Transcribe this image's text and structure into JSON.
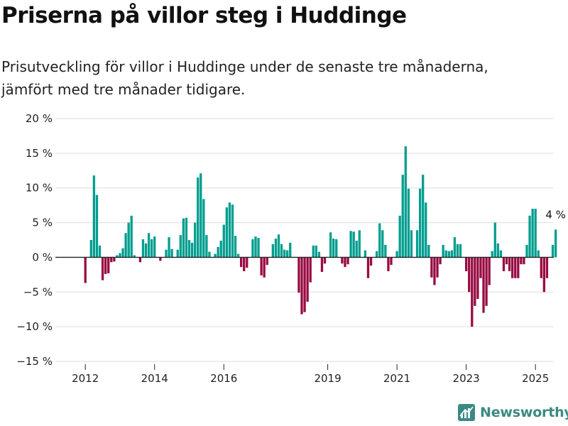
{
  "title": "Priserna på villor steg i Huddinge",
  "subtitle_lines": [
    "Prisutveckling för villor i Huddinge under de senaste tre månaderna,",
    "jämfört med tre månader tidigare."
  ],
  "brand": "Newsworthy",
  "colors": {
    "positive": "#009e8f",
    "negative": "#980a42",
    "grid": "#dddddd",
    "zero_line": "#222222",
    "brand": "#3a8a83"
  },
  "chart_data": {
    "type": "bar",
    "ylim": [
      -15,
      20
    ],
    "y_ticks": [
      -15,
      -10,
      -5,
      0,
      5,
      10,
      15,
      20
    ],
    "y_tick_labels": [
      "−15 %",
      "−10 %",
      "−5 %",
      "0 %",
      "5 %",
      "10 %",
      "15 %",
      "20 %"
    ],
    "x_ticks": [
      2012,
      2014,
      2016,
      2019,
      2021,
      2023,
      2025
    ],
    "x_tick_labels": [
      "2012",
      "2014",
      "2016",
      "2019",
      "2021",
      "2023",
      "2025"
    ],
    "x_start": 2012,
    "months_per_step": 1,
    "grid": true,
    "annotation": {
      "text": "4 %",
      "x": 2025
    },
    "values": [
      -3.7,
      null,
      2.5,
      11.8,
      9.0,
      1.7,
      -3.3,
      -2.4,
      -2.3,
      -0.7,
      -0.6,
      0.3,
      0.6,
      1.3,
      3.5,
      5.0,
      6.0,
      0.3,
      null,
      -0.7,
      2.6,
      2.0,
      3.5,
      2.6,
      3.0,
      null,
      -0.5,
      null,
      1.1,
      2.9,
      1.2,
      null,
      1.1,
      3.2,
      5.6,
      5.7,
      2.5,
      2.1,
      5.0,
      11.5,
      12.1,
      8.4,
      3.2,
      0.8,
      null,
      0.5,
      1.5,
      2.4,
      4.7,
      7.2,
      7.9,
      7.6,
      3.1,
      0.5,
      -1.4,
      -2.0,
      -1.5,
      null,
      2.6,
      3.0,
      2.8,
      -2.6,
      -2.9,
      -1.1,
      null,
      1.9,
      2.7,
      3.3,
      1.9,
      1.1,
      1.0,
      2.1,
      null,
      null,
      -5.1,
      -8.2,
      -7.9,
      -6.4,
      -3.6,
      1.7,
      1.7,
      0.8,
      -2.1,
      -0.9,
      null,
      3.6,
      2.7,
      2.6,
      null,
      -0.9,
      -1.4,
      -1.0,
      3.8,
      3.7,
      2.4,
      3.9,
      null,
      1.0,
      -3.0,
      -1.2,
      null,
      0.9,
      4.9,
      3.9,
      1.8,
      -2.0,
      -1.1,
      null,
      0.9,
      6.0,
      11.9,
      16.0,
      9.9,
      3.9,
      null,
      3.9,
      9.9,
      11.9,
      7.9,
      1.8,
      -2.9,
      -4.0,
      -2.9,
      -1.0,
      1.8,
      1.0,
      0.9,
      1.0,
      2.9,
      1.9,
      1.9,
      null,
      -2.0,
      -5.0,
      -10.0,
      -7.0,
      -6.0,
      -3.0,
      -8.0,
      -7.0,
      -4.0,
      0.9,
      5.0,
      2.0,
      1.0,
      -2.0,
      -1.0,
      -2.0,
      -3.0,
      -3.0,
      -3.0,
      -1.0,
      -1.0,
      1.8,
      6.0,
      7.0,
      7.0,
      1.0,
      -3.0,
      -5.0,
      -3.0,
      null,
      1.8,
      4.0
    ]
  }
}
